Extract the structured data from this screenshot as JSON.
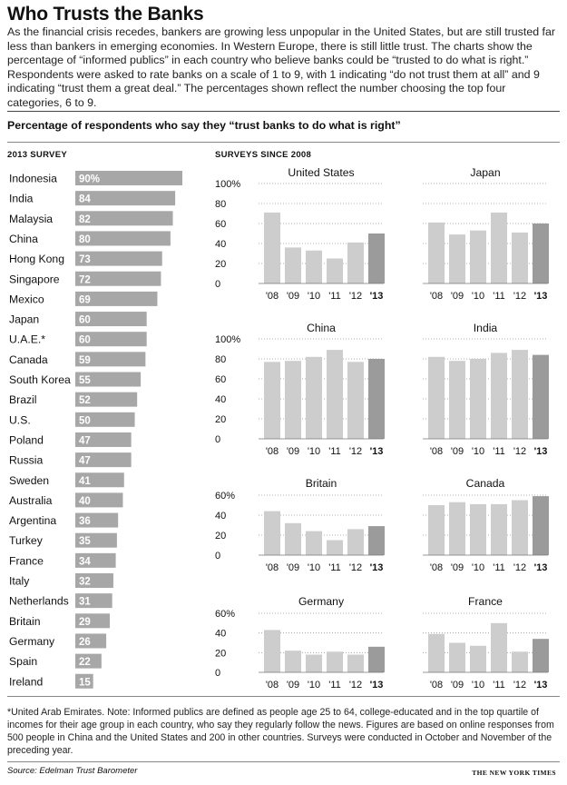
{
  "title": "Who Trusts the Banks",
  "intro": "As the financial crisis recedes, bankers are growing less unpopular in the United States, but are still trusted far less than bankers in emerging economies. In Western Europe, there is still little trust. The charts show the percentage of “informed publics” in each country who believe banks could be “trusted to do what is right.”  Respondents were asked to rate banks on a scale of 1 to 9, with 1 indicating “do not trust them at all” and 9 indicating “trust them a great deal.”  The percentages shown reflect the number choosing the top four categories, 6 to 9.",
  "subtitle": "Percentage of respondents who say they “trust banks to do what is right”",
  "left_heading": "2013 SURVEY",
  "right_heading": "SURVEYS SINCE 2008",
  "footnote": "*United Arab Emirates. Note: Informed publics are defined as people age 25 to 64, college-educated and in the top quartile of incomes for their age group in each country, who say they regularly follow the news. Figures are based on online responses from 500 people in China and the United States and 200 in other countries. Surveys were conducted in October and November of the preceding year.",
  "source": "Source: Edelman Trust Barometer",
  "credit": "THE NEW YORK TIMES",
  "colors": {
    "bar": "#a7a7a7",
    "bar_light": "#cdcdcd",
    "bar_dark": "#9b9b9b",
    "grid": "#999999"
  },
  "chart_data": [
    {
      "type": "bar",
      "orientation": "horizontal",
      "categories": [
        "Indonesia",
        "India",
        "Malaysia",
        "China",
        "Hong Kong",
        "Singapore",
        "Mexico",
        "Japan",
        "U.A.E.*",
        "Canada",
        "South Korea",
        "Brazil",
        "U.S.",
        "Poland",
        "Russia",
        "Sweden",
        "Australia",
        "Argentina",
        "Turkey",
        "France",
        "Italy",
        "Netherlands",
        "Britain",
        "Germany",
        "Spain",
        "Ireland"
      ],
      "values": [
        90,
        84,
        82,
        80,
        73,
        72,
        69,
        60,
        60,
        59,
        55,
        52,
        50,
        47,
        47,
        41,
        40,
        36,
        35,
        34,
        32,
        31,
        29,
        26,
        22,
        15
      ],
      "value_labels": [
        "90%",
        "84",
        "82",
        "80",
        "73",
        "72",
        "69",
        "60",
        "60",
        "59",
        "55",
        "52",
        "50",
        "47",
        "47",
        "41",
        "40",
        "36",
        "35",
        "34",
        "32",
        "31",
        "29",
        "26",
        "22",
        "15"
      ],
      "xlim": [
        0,
        90
      ]
    },
    {
      "type": "bar",
      "title": "United States",
      "categories": [
        "'08",
        "'09",
        "'10",
        "'11",
        "'12",
        "'13"
      ],
      "values": [
        71,
        36,
        33,
        25,
        41,
        50
      ],
      "yticks": [
        "100%",
        "80",
        "60",
        "40",
        "20",
        "0"
      ],
      "ylim": [
        0,
        100
      ]
    },
    {
      "type": "bar",
      "title": "Japan",
      "categories": [
        "'08",
        "'09",
        "'10",
        "'11",
        "'12",
        "'13"
      ],
      "values": [
        61,
        49,
        53,
        71,
        51,
        60
      ],
      "yticks": [],
      "ylim": [
        0,
        100
      ]
    },
    {
      "type": "bar",
      "title": "China",
      "categories": [
        "'08",
        "'09",
        "'10",
        "'11",
        "'12",
        "'13"
      ],
      "values": [
        77,
        78,
        82,
        89,
        77,
        80
      ],
      "yticks": [
        "100%",
        "80",
        "60",
        "40",
        "20",
        "0"
      ],
      "ylim": [
        0,
        100
      ]
    },
    {
      "type": "bar",
      "title": "India",
      "categories": [
        "'08",
        "'09",
        "'10",
        "'11",
        "'12",
        "'13"
      ],
      "values": [
        82,
        78,
        80,
        86,
        89,
        84
      ],
      "yticks": [],
      "ylim": [
        0,
        100
      ]
    },
    {
      "type": "bar",
      "title": "Britain",
      "categories": [
        "'08",
        "'09",
        "'10",
        "'11",
        "'12",
        "'13"
      ],
      "values": [
        44,
        32,
        24,
        15,
        26,
        29
      ],
      "yticks": [
        "60%",
        "40",
        "20",
        "0"
      ],
      "ylim": [
        0,
        60
      ]
    },
    {
      "type": "bar",
      "title": "Canada",
      "categories": [
        "'08",
        "'09",
        "'10",
        "'11",
        "'12",
        "'13"
      ],
      "values": [
        50,
        53,
        51,
        51,
        55,
        59
      ],
      "yticks": [],
      "ylim": [
        0,
        60
      ]
    },
    {
      "type": "bar",
      "title": "Germany",
      "categories": [
        "'08",
        "'09",
        "'10",
        "'11",
        "'12",
        "'13"
      ],
      "values": [
        43,
        22,
        18,
        21,
        18,
        26
      ],
      "yticks": [
        "60%",
        "40",
        "20",
        "0"
      ],
      "ylim": [
        0,
        60
      ]
    },
    {
      "type": "bar",
      "title": "France",
      "categories": [
        "'08",
        "'09",
        "'10",
        "'11",
        "'12",
        "'13"
      ],
      "values": [
        39,
        30,
        27,
        50,
        21,
        34
      ],
      "yticks": [],
      "ylim": [
        0,
        60
      ]
    }
  ]
}
